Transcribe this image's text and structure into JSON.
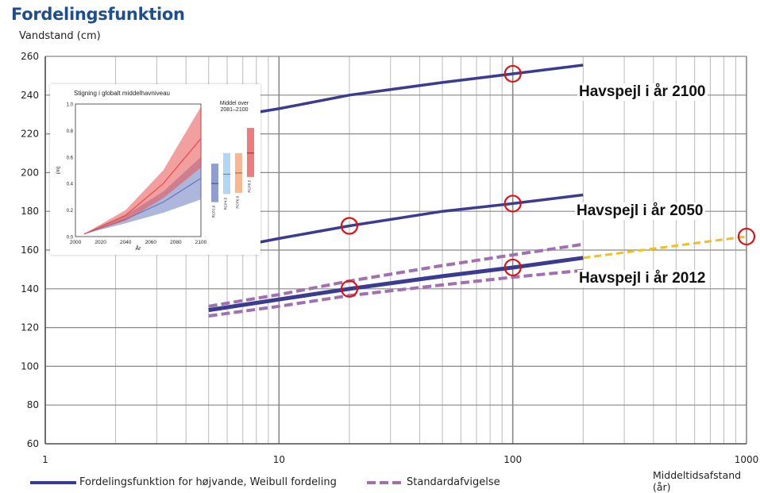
{
  "title": "Fordelingsfunktion",
  "ylabel": "Vandstand (cm)",
  "xlabel": "Middeltidsafstand (år)",
  "legend": {
    "main": "Fordelingsfunktion for højvande, Weibull fordeling",
    "std": "Standardafvigelse"
  },
  "annotations": {
    "y2100": "Havspejl i år 2100",
    "y2050": "Havspejl i år 2050",
    "y2012": "Havspejl i år 2012"
  },
  "colors": {
    "main_line": "#3b3b8f",
    "std_line": "#a070b0",
    "projection": "#f0c020",
    "marker": "#e01010",
    "grid_major": "#888888",
    "grid_minor": "#bbbbbb",
    "title": "#1f4e8c"
  },
  "chart_data": {
    "type": "line",
    "x_scale": "log",
    "xlim": [
      1,
      1000
    ],
    "ylim": [
      60,
      260
    ],
    "x_ticks": [
      1,
      10,
      100,
      1000
    ],
    "y_ticks": [
      60,
      80,
      100,
      120,
      140,
      160,
      180,
      200,
      220,
      240,
      260
    ],
    "grid": true,
    "legend_position": "bottom",
    "series": [
      {
        "name": "Fordelingsfunktion for højvande, Weibull fordeling",
        "style": "solid",
        "x": [
          5,
          10,
          20,
          50,
          100,
          200
        ],
        "y": [
          129,
          134.5,
          140,
          146.5,
          151,
          156
        ]
      },
      {
        "name": "Standardafvigelse",
        "style": "dashed",
        "x": [
          5,
          10,
          20,
          50,
          100,
          200
        ],
        "y": [
          131,
          137,
          144,
          152,
          157.5,
          163
        ]
      },
      {
        "name": "Standardafvigelse",
        "style": "dashed",
        "x": [
          5,
          10,
          20,
          50,
          100,
          200
        ],
        "y": [
          126,
          131,
          136.5,
          142,
          146,
          149.5
        ]
      },
      {
        "style": "solid",
        "x": [
          5,
          10,
          20,
          50,
          100,
          200
        ],
        "y": [
          159,
          166,
          172.5,
          180,
          184,
          188.5
        ]
      },
      {
        "style": "solid",
        "x": [
          5,
          10,
          20,
          50,
          100,
          200
        ],
        "y": [
          227,
          233,
          240,
          246.5,
          251,
          255.5
        ]
      },
      {
        "style": "dashed",
        "x": [
          200,
          1000
        ],
        "y": [
          156,
          167
        ]
      }
    ],
    "markers": [
      {
        "x": 20,
        "y": 140
      },
      {
        "x": 100,
        "y": 151
      },
      {
        "x": 20,
        "y": 172.5
      },
      {
        "x": 100,
        "y": 184
      },
      {
        "x": 100,
        "y": 251
      },
      {
        "x": 1000,
        "y": 167
      }
    ]
  },
  "inset": {
    "title": "Stigning i globalt middelhavniveau",
    "ylabel": "(m)",
    "xlabel": "År",
    "box_label": "Middel over 2081–2100",
    "x_ticks": [
      2000,
      2020,
      2040,
      2060,
      2080,
      2100
    ],
    "y_ticks": [
      0.0,
      0.2,
      0.4,
      0.6,
      0.8,
      1.0
    ],
    "scenarios": [
      {
        "name": "RCP2.6",
        "color": "#6a7cc0",
        "low": 0.26,
        "mean": 0.4,
        "high": 0.55
      },
      {
        "name": "RCP4.5",
        "color": "#9ac8ec",
        "low": 0.32,
        "mean": 0.47,
        "high": 0.63
      },
      {
        "name": "RCP6.0",
        "color": "#f0a070",
        "low": 0.33,
        "mean": 0.48,
        "high": 0.63
      },
      {
        "name": "RCP8.5",
        "color": "#e85050",
        "low": 0.45,
        "mean": 0.63,
        "high": 0.82
      }
    ],
    "low_band": {
      "color": "#6a7cc0",
      "x": [
        2007,
        2040,
        2070,
        2100
      ],
      "mean": [
        0.02,
        0.13,
        0.26,
        0.44
      ],
      "low": [
        0.02,
        0.1,
        0.18,
        0.28
      ],
      "high": [
        0.02,
        0.16,
        0.34,
        0.6
      ]
    },
    "high_band": {
      "color": "#e85050",
      "x": [
        2007,
        2040,
        2070,
        2100
      ],
      "mean": [
        0.02,
        0.16,
        0.4,
        0.74
      ],
      "low": [
        0.02,
        0.12,
        0.29,
        0.52
      ],
      "high": [
        0.02,
        0.2,
        0.5,
        0.98
      ]
    }
  }
}
